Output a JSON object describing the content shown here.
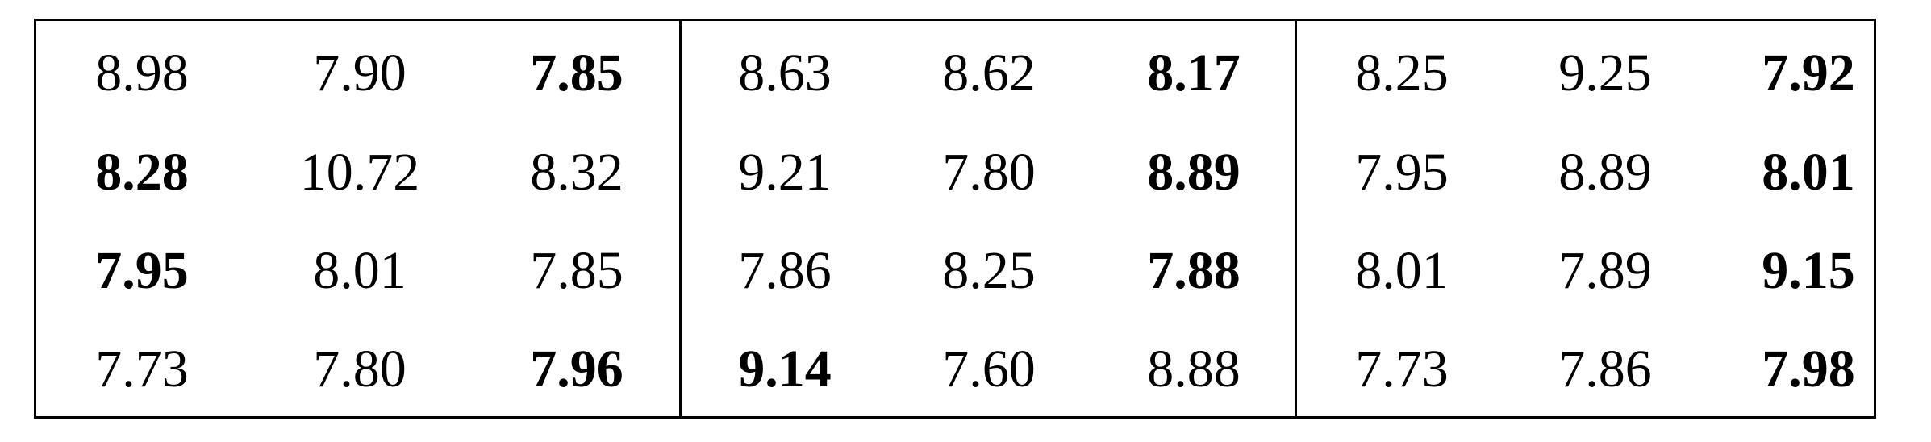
{
  "table": {
    "panels": [
      {
        "rows": [
          [
            {
              "value": "8.98",
              "bold": false
            },
            {
              "value": "7.90",
              "bold": false
            },
            {
              "value": "7.85",
              "bold": true
            }
          ],
          [
            {
              "value": "8.28",
              "bold": true
            },
            {
              "value": "10.72",
              "bold": false
            },
            {
              "value": "8.32",
              "bold": false
            }
          ],
          [
            {
              "value": "7.95",
              "bold": true
            },
            {
              "value": "8.01",
              "bold": false
            },
            {
              "value": "7.85",
              "bold": false
            }
          ],
          [
            {
              "value": "7.73",
              "bold": false
            },
            {
              "value": "7.80",
              "bold": false
            },
            {
              "value": "7.96",
              "bold": true
            }
          ]
        ]
      },
      {
        "rows": [
          [
            {
              "value": "8.63",
              "bold": false
            },
            {
              "value": "8.62",
              "bold": false
            },
            {
              "value": "8.17",
              "bold": true
            }
          ],
          [
            {
              "value": "9.21",
              "bold": false
            },
            {
              "value": "7.80",
              "bold": false
            },
            {
              "value": "8.89",
              "bold": true
            }
          ],
          [
            {
              "value": "7.86",
              "bold": false
            },
            {
              "value": "8.25",
              "bold": false
            },
            {
              "value": "7.88",
              "bold": true
            }
          ],
          [
            {
              "value": "9.14",
              "bold": true
            },
            {
              "value": "7.60",
              "bold": false
            },
            {
              "value": "8.88",
              "bold": false
            }
          ]
        ]
      },
      {
        "rows": [
          [
            {
              "value": "8.25",
              "bold": false
            },
            {
              "value": "9.25",
              "bold": false
            },
            {
              "value": "7.92",
              "bold": true
            }
          ],
          [
            {
              "value": "7.95",
              "bold": false
            },
            {
              "value": "8.89",
              "bold": false
            },
            {
              "value": "8.01",
              "bold": true
            }
          ],
          [
            {
              "value": "8.01",
              "bold": false
            },
            {
              "value": "7.89",
              "bold": false
            },
            {
              "value": "9.15",
              "bold": true
            }
          ],
          [
            {
              "value": "7.73",
              "bold": false
            },
            {
              "value": "7.86",
              "bold": false
            },
            {
              "value": "7.98",
              "bold": true
            }
          ]
        ]
      }
    ]
  }
}
